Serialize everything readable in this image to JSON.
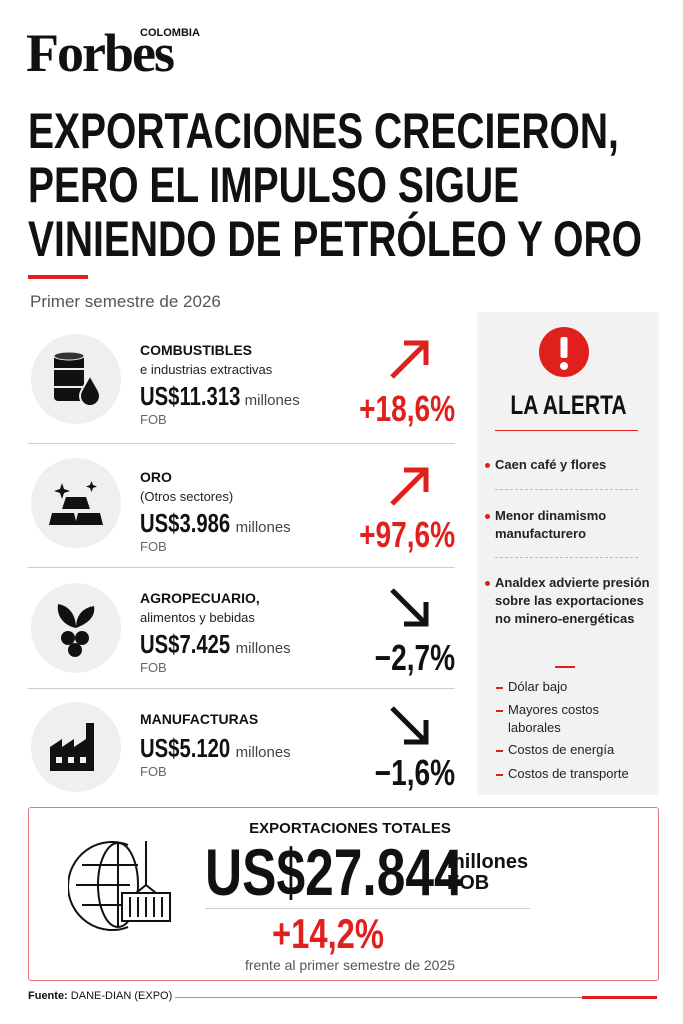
{
  "header": {
    "brand": "Forbes",
    "edition": "COLOMBIA",
    "title": [
      "EXPORTACIONES CRECIERON,",
      "PERO EL IMPULSO SIGUE",
      "VINIENDO DE PETRÓLEO Y ORO"
    ],
    "subtitle": "Primer semestre de 2026"
  },
  "sectors": [
    {
      "name": "COMBUSTIBLES",
      "detail": "e industrias extractivas",
      "value": "US$11.313",
      "unit": "millones",
      "basis": "FOB",
      "change": "+18,6%"
    },
    {
      "name": "ORO",
      "detail": "(Otros sectores)",
      "value": "US$3.986",
      "unit": "millones",
      "basis": "FOB",
      "change": "+97,6%"
    },
    {
      "name": "AGROPECUARIO,",
      "detail": "alimentos y bebidas",
      "value": "US$7.425",
      "unit": "millones",
      "basis": "FOB",
      "change": "−2,7%"
    },
    {
      "name": "MANUFACTURAS",
      "value": "US$5.120",
      "unit": "millones",
      "basis": "FOB",
      "change": "−1,6%"
    }
  ],
  "alert": {
    "title": "LA ALERTA",
    "points": [
      "Caen café y flores",
      "Menor dinamismo manufacturero",
      "Analdex advierte presión sobre las exportaciones no minero-energéticas"
    ],
    "causes": [
      "Dólar bajo",
      "Mayores costos laborales",
      "Costos de energía",
      "Costos de transporte"
    ]
  },
  "total": {
    "label": "EXPORTACIONES TOTALES",
    "value": "US$27.844",
    "unit": "millones",
    "basis": "FOB",
    "change": "+14,2%",
    "comparison": "frente al primer semestre de 2025"
  },
  "source": {
    "label": "Fuente:",
    "text": "DANE-DIAN (EXPO)"
  }
}
